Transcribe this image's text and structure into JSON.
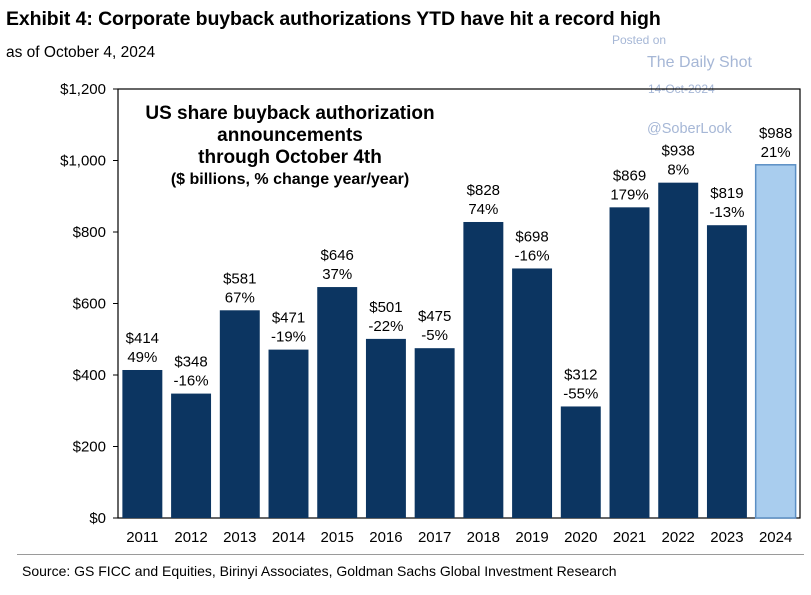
{
  "header": {
    "title": "Exhibit 4: Corporate buyback authorizations YTD have hit a record high",
    "subtitle": "as of October 4, 2024"
  },
  "watermark": {
    "posted": "Posted on",
    "site": "The Daily Shot",
    "date": "14-Oct-2024",
    "handle": "@SoberLook"
  },
  "footer": {
    "source": "Source: GS FICC and Equities, Birinyi Associates, Goldman Sachs Global Investment Research"
  },
  "colors": {
    "bar": "#0c3561",
    "highlight_bar": "#a9cdee",
    "highlight_border": "#5b8fc4"
  },
  "chart_data": {
    "type": "bar",
    "title_lines": [
      "US share buyback authorization",
      "announcements",
      "through October 4th"
    ],
    "units_line": "($ billions, % change year/year)",
    "categories": [
      "2011",
      "2012",
      "2013",
      "2014",
      "2015",
      "2016",
      "2017",
      "2018",
      "2019",
      "2020",
      "2021",
      "2022",
      "2023",
      "2024"
    ],
    "values": [
      414,
      348,
      581,
      471,
      646,
      501,
      475,
      828,
      698,
      312,
      869,
      938,
      819,
      988
    ],
    "value_labels": [
      "$414",
      "$348",
      "$581",
      "$471",
      "$646",
      "$501",
      "$475",
      "$828",
      "$698",
      "$312",
      "$869",
      "$938",
      "$819",
      "$988"
    ],
    "pct_labels": [
      "49%",
      "-16%",
      "67%",
      "-19%",
      "37%",
      "-22%",
      "-5%",
      "74%",
      "-16%",
      "-55%",
      "179%",
      "8%",
      "-13%",
      "21%"
    ],
    "highlight_index": 13,
    "ylim": [
      0,
      1200
    ],
    "yticks": [
      0,
      200,
      400,
      600,
      800,
      1000,
      1200
    ],
    "ytick_labels": [
      "$0",
      "$200",
      "$400",
      "$600",
      "$800",
      "$1,000",
      "$1,200"
    ],
    "grid": false,
    "legend": "none"
  }
}
